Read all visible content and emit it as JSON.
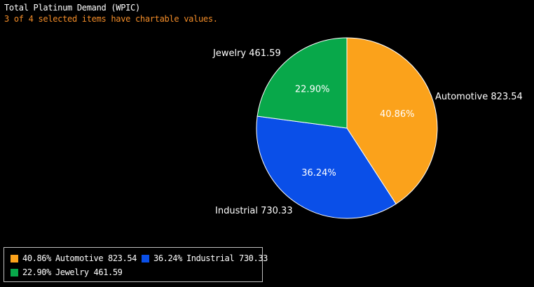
{
  "header": {
    "title": "Total Platinum Demand (WPIC)",
    "subtitle": "3 of 4 selected items have chartable values."
  },
  "chart_data": {
    "type": "pie",
    "title": "Total Platinum Demand (WPIC)",
    "slices": [
      {
        "name": "Automotive",
        "value": 823.54,
        "percent": "40.86%",
        "label": "Automotive 823.54",
        "color": "#fba21b"
      },
      {
        "name": "Industrial",
        "value": 730.33,
        "percent": "36.24%",
        "label": "Industrial 730.33",
        "color": "#0a4fe8"
      },
      {
        "name": "Jewelry",
        "value": 461.59,
        "percent": "22.90%",
        "label": "Jewelry 461.59",
        "color": "#08a84a"
      }
    ],
    "legend_position": "bottom-left"
  },
  "legend": {
    "items": [
      {
        "pct": "40.86%",
        "label": "Automotive 823.54",
        "color": "#fba21b"
      },
      {
        "pct": "36.24%",
        "label": "Industrial 730.33",
        "color": "#0a4fe8"
      },
      {
        "pct": "22.90%",
        "label": "Jewelry 461.59",
        "color": "#08a84a"
      }
    ]
  }
}
